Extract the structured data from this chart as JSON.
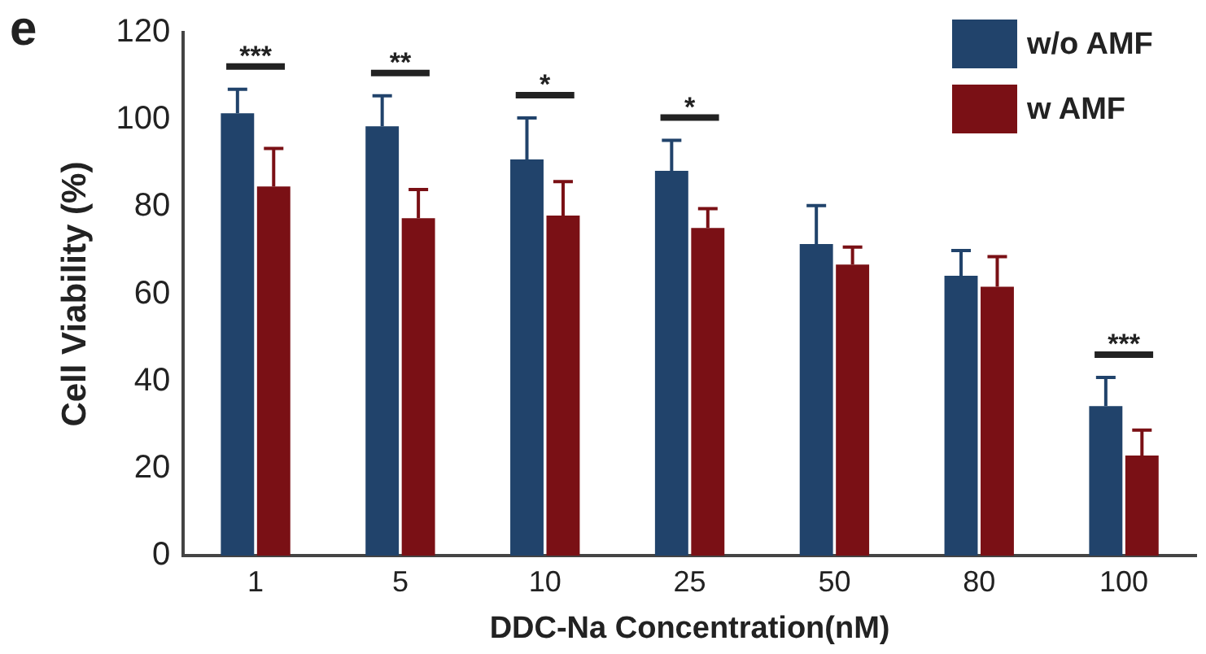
{
  "chart_data": {
    "type": "bar",
    "xlabel": "DDC-Na Concentration(nM)",
    "ylabel": "Cell Viability (%)",
    "categories": [
      "1",
      "5",
      "10",
      "25",
      "50",
      "80",
      "100"
    ],
    "series": [
      {
        "name": "w/o AMF",
        "color": "#21436b",
        "values": [
          101.5,
          98.5,
          90.9,
          88.3,
          71.5,
          64.2,
          34.3
        ],
        "errors": [
          [
            101.5,
            107
          ],
          [
            98.5,
            105.5
          ],
          [
            90.9,
            100.4
          ],
          [
            88.3,
            95.3
          ],
          [
            71.5,
            80.3
          ],
          [
            64.2,
            70
          ],
          [
            34.3,
            40.9
          ]
        ]
      },
      {
        "name": "w AMF",
        "color": "#7a1015",
        "values": [
          84.7,
          77.4,
          78,
          75.2,
          66.8,
          61.7,
          23
        ],
        "errors": [
          [
            84.7,
            93.4
          ],
          [
            77.4,
            84
          ],
          [
            78,
            85.8
          ],
          [
            75.2,
            79.6
          ],
          [
            66.8,
            70.8
          ],
          [
            61.7,
            68.6
          ],
          [
            23,
            28.8
          ]
        ]
      }
    ],
    "ylim": [
      0,
      120
    ],
    "yticks": [
      0,
      20,
      40,
      60,
      80,
      100,
      120
    ],
    "grid": false,
    "legend": "top right",
    "annotations": [
      "e",
      "***",
      "**",
      "*",
      "*",
      "***"
    ]
  }
}
